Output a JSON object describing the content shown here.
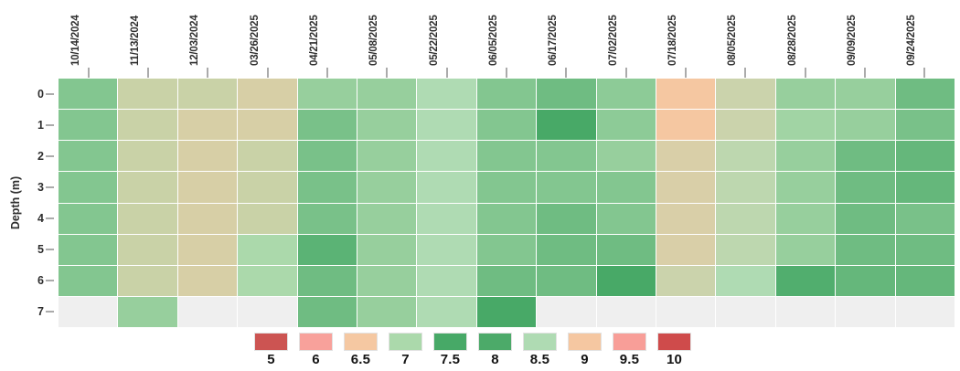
{
  "chart_data": {
    "type": "heatmap",
    "title": "",
    "xlabel": "",
    "ylabel": "Depth (m)",
    "legend_position": "bottom",
    "grid": false,
    "columns": [
      "10/14/2024",
      "11/13/2024",
      "12/03/2024",
      "03/26/2025",
      "04/21/2025",
      "05/08/2025",
      "05/22/2025",
      "06/05/2025",
      "06/17/2025",
      "07/02/2025",
      "07/18/2025",
      "08/05/2025",
      "08/28/2025",
      "09/09/2025",
      "09/24/2025"
    ],
    "row_labels": [
      "0",
      "1",
      "2",
      "3",
      "4",
      "5",
      "6",
      "7"
    ],
    "values": [
      [
        7.2,
        6.8,
        6.8,
        6.7,
        7.1,
        7.1,
        8.5,
        7.2,
        7.3,
        7.15,
        9.0,
        8.7,
        7.1,
        7.1,
        7.3
      ],
      [
        7.2,
        6.8,
        6.7,
        6.7,
        7.25,
        7.1,
        8.5,
        7.2,
        7.6,
        7.15,
        9.0,
        8.7,
        7.05,
        7.1,
        7.25
      ],
      [
        7.2,
        6.8,
        6.7,
        6.8,
        7.25,
        7.1,
        8.5,
        7.2,
        7.2,
        7.1,
        8.8,
        8.6,
        7.1,
        7.3,
        7.35
      ],
      [
        7.2,
        6.8,
        6.7,
        6.8,
        7.25,
        7.1,
        8.5,
        7.2,
        7.2,
        7.2,
        8.8,
        8.6,
        7.1,
        7.3,
        7.35
      ],
      [
        7.2,
        6.8,
        6.7,
        6.8,
        7.25,
        7.1,
        8.5,
        7.2,
        7.3,
        7.2,
        8.8,
        8.6,
        7.1,
        7.3,
        7.25
      ],
      [
        7.2,
        6.8,
        6.7,
        7.0,
        7.4,
        7.1,
        8.5,
        7.2,
        7.3,
        7.3,
        8.8,
        8.6,
        7.1,
        7.3,
        7.3
      ],
      [
        7.2,
        6.8,
        6.7,
        7.0,
        7.3,
        7.1,
        8.5,
        7.3,
        7.3,
        7.6,
        8.7,
        8.5,
        7.45,
        7.35,
        7.35
      ],
      [
        null,
        7.1,
        null,
        null,
        7.3,
        7.1,
        8.5,
        7.6,
        null,
        null,
        null,
        null,
        null,
        null,
        null
      ]
    ],
    "colormap": {
      "stops": [
        5,
        6,
        6.5,
        7,
        7.5,
        8,
        8.5,
        9,
        9.5,
        10
      ],
      "colors": [
        "#cc5452",
        "#f8a19b",
        "#f5c8a2",
        "#abd9ab",
        "#47a967",
        "#4caa69",
        "#afdbb3",
        "#f5c7a1",
        "#f89e98",
        "#cf4b4b"
      ]
    },
    "missing_color": "#efefef",
    "legend": {
      "labels": [
        "5",
        "6",
        "6.5",
        "7",
        "7.5",
        "8",
        "8.5",
        "9",
        "9.5",
        "10"
      ]
    }
  }
}
